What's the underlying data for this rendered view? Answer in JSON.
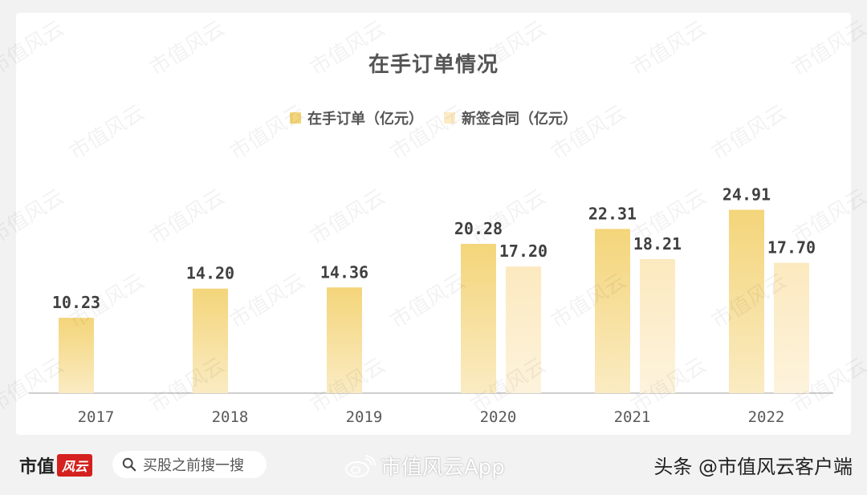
{
  "chart_data": {
    "type": "bar",
    "title": "在手订单情况",
    "categories": [
      "2017",
      "2018",
      "2019",
      "2020",
      "2021",
      "2022"
    ],
    "series": [
      {
        "name": "在手订单（亿元）",
        "values": [
          10.23,
          14.2,
          14.36,
          20.28,
          22.31,
          24.91
        ],
        "labels": [
          "10.23",
          "14.20",
          "14.36",
          "20.28",
          "22.31",
          "24.91"
        ],
        "color_top": "#f4d57a",
        "color_bottom": "#faebc2"
      },
      {
        "name": "新签合同（亿元）",
        "values": [
          null,
          null,
          null,
          17.2,
          18.21,
          17.7
        ],
        "labels": [
          "",
          "",
          "",
          "17.20",
          "18.21",
          "17.70"
        ],
        "color_top": "#fce9bf",
        "color_bottom": "#fdf3dc"
      }
    ],
    "legend_position": "top",
    "grid": false,
    "ylim": [
      0,
      30
    ]
  },
  "watermark_text": "市值风云",
  "footer": {
    "brand_text": "市值",
    "brand_logo_text": "风云",
    "search_text": "买股之前搜一搜",
    "weibo_text": "市值风云App",
    "source_text": "头条 @市值风云客户端"
  },
  "colors": {
    "axis": "#bfbfbf",
    "label": "#404040",
    "tick": "#595959"
  }
}
